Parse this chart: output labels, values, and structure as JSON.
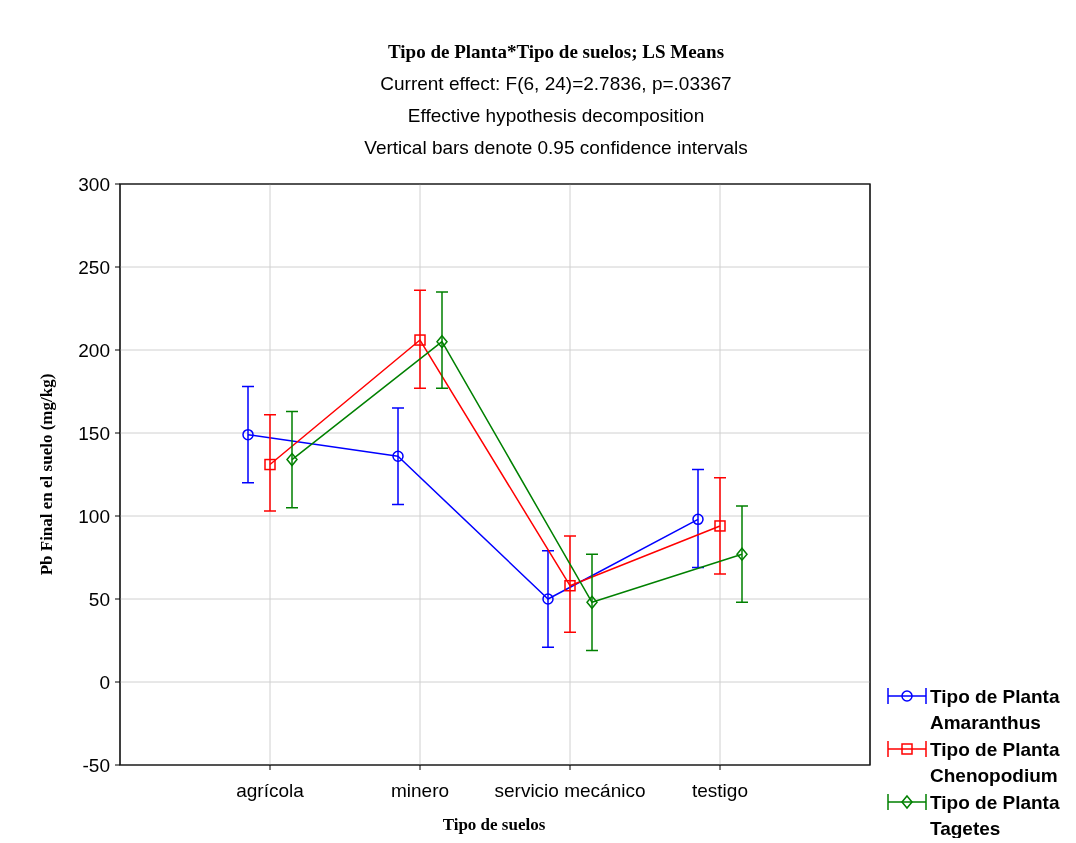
{
  "chart_data": {
    "type": "line",
    "title": "Tipo de Planta*Tipo de suelos; LS Means",
    "subtitle": "Current effect: F(6, 24)=2.7836, p=.03367",
    "annotations": [
      "Effective hypothesis decomposition",
      "Vertical bars denote 0.95 confidence intervals"
    ],
    "xlabel": "Tipo de suelos",
    "ylabel": "Pb Final en el suelo (mg/kg)",
    "categories": [
      "agrícola",
      "minero",
      "servicio mecánico",
      "testigo"
    ],
    "ylim": [
      -50,
      300
    ],
    "yticks": [
      -50,
      0,
      50,
      100,
      150,
      200,
      250,
      300
    ],
    "grid": true,
    "legend": "bottom right",
    "series": [
      {
        "name": "Tipo de Planta Amaranthus",
        "color": "#0000ff",
        "marker": "circle",
        "values": [
          149,
          136,
          50,
          98
        ],
        "errors": [
          [
            120,
            178
          ],
          [
            107,
            165
          ],
          [
            21,
            79
          ],
          [
            69,
            128
          ]
        ]
      },
      {
        "name": "Tipo de Planta Chenopodium",
        "color": "#ff0000",
        "marker": "square",
        "values": [
          131,
          206,
          58,
          94
        ],
        "errors": [
          [
            103,
            161
          ],
          [
            177,
            236
          ],
          [
            30,
            88
          ],
          [
            65,
            123
          ]
        ]
      },
      {
        "name": "Tipo de Planta Tagetes",
        "color": "#008000",
        "marker": "diamond",
        "values": [
          134,
          205,
          48,
          77
        ],
        "errors": [
          [
            105,
            163
          ],
          [
            177,
            235
          ],
          [
            19,
            77
          ],
          [
            48,
            106
          ]
        ]
      }
    ]
  }
}
